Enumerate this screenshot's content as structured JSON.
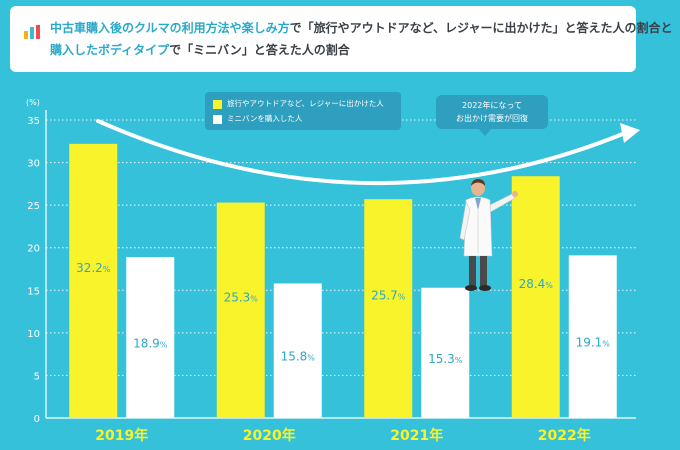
{
  "title": {
    "line1_part1": "中古車購入後のクルマの利用方法や楽しみ方",
    "line1_part2": "で「旅行やアウトドアなど、レジャーに出かけた」と答えた人の割合と",
    "line2_part1": "購入したボディタイプ",
    "line2_part2": "で「ミニバン」と答えた人の割合"
  },
  "note": {
    "line1": "2022年になって",
    "line2": "お出かけ需要が回復"
  },
  "colors": {
    "background": "#34c1d9",
    "bar_yellow": "#f8f32a",
    "bar_white": "#ffffff",
    "label_blue": "#2fa7c8",
    "year_yellow": "#f8f32a",
    "accent_blue": "#2aa9c9"
  },
  "chart_data": {
    "type": "bar",
    "unit_label": "(%)",
    "categories": [
      "2019年",
      "2020年",
      "2021年",
      "2022年"
    ],
    "series": [
      {
        "name": "旅行やアウトドアなど、レジャーに出かけた人",
        "values": [
          32.2,
          25.3,
          25.7,
          28.4
        ]
      },
      {
        "name": "ミニバンを購入した人",
        "values": [
          18.9,
          15.8,
          15.3,
          19.1
        ]
      }
    ],
    "ylim": [
      0,
      35
    ],
    "yticks": [
      0,
      5,
      10,
      15,
      20,
      25,
      30,
      35
    ],
    "percent_suffix": "%",
    "grid": true
  }
}
